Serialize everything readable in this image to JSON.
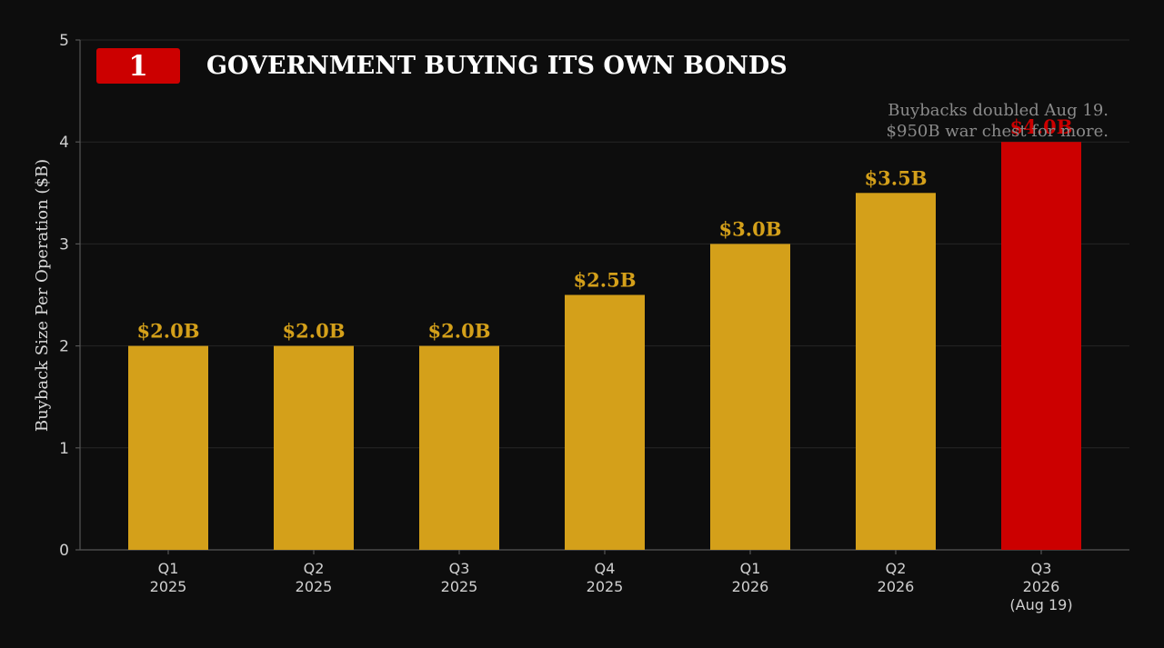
{
  "header": {
    "badge": "1",
    "title": "GOVERNMENT BUYING ITS OWN BONDS"
  },
  "annotation": {
    "line1": "Buybacks doubled Aug 19.",
    "line2": "$950B war chest for more."
  },
  "colors": {
    "background": "#0d0d0d",
    "bar": "#d4a01a",
    "highlight": "#cc0000",
    "grid": "#262626",
    "axis": "#555555"
  },
  "chart_data": {
    "type": "bar",
    "categories": [
      [
        "Q1",
        "2025"
      ],
      [
        "Q2",
        "2025"
      ],
      [
        "Q3",
        "2025"
      ],
      [
        "Q4",
        "2025"
      ],
      [
        "Q1",
        "2026"
      ],
      [
        "Q2",
        "2026"
      ],
      [
        "Q3",
        "2026",
        "(Aug 19)"
      ]
    ],
    "values": [
      2.0,
      2.0,
      2.0,
      2.5,
      3.0,
      3.5,
      4.0
    ],
    "data_labels": [
      "$2.0B",
      "$2.0B",
      "$2.0B",
      "$2.5B",
      "$3.0B",
      "$3.5B",
      "$4.0B"
    ],
    "highlight_index": 6,
    "ylabel": "Buyback Size Per Operation ($B)",
    "xlabel": "",
    "ylim": [
      0,
      5
    ],
    "yticks": [
      0,
      1,
      2,
      3,
      4,
      5
    ],
    "grid": true
  }
}
